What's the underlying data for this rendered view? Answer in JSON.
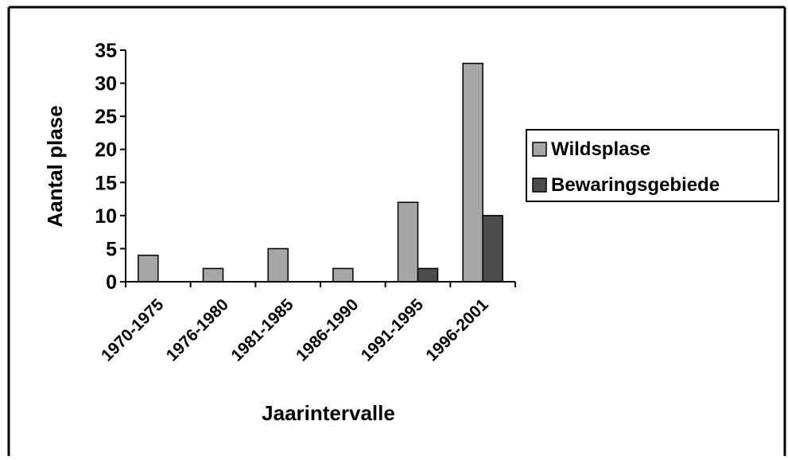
{
  "chart_data": {
    "type": "bar",
    "title": "",
    "xlabel": "Jaarintervalle",
    "ylabel": "Aantal plase",
    "categories": [
      "1970-1975",
      "1976-1980",
      "1981-1985",
      "1986-1990",
      "1991-1995",
      "1996-2001"
    ],
    "series": [
      {
        "name": "Wildsplase",
        "values": [
          4,
          2,
          5,
          2,
          12,
          33
        ],
        "color": "#a6a6a6"
      },
      {
        "name": "Bewaringsgebiede",
        "values": [
          0,
          0,
          0,
          0,
          2,
          10
        ],
        "color": "#4d4d4d"
      }
    ],
    "ylim": [
      0,
      35
    ],
    "yticks": [
      0,
      5,
      10,
      15,
      20,
      25,
      30,
      35
    ],
    "grid": false,
    "legend_position": "right",
    "outline_color": "#000000"
  }
}
